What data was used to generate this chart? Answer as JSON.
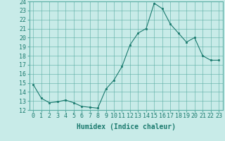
{
  "x": [
    0,
    1,
    2,
    3,
    4,
    5,
    6,
    7,
    8,
    9,
    10,
    11,
    12,
    13,
    14,
    15,
    16,
    17,
    18,
    19,
    20,
    21,
    22,
    23
  ],
  "y": [
    14.8,
    13.3,
    12.8,
    12.9,
    13.1,
    12.8,
    12.4,
    12.3,
    12.2,
    14.3,
    15.3,
    16.8,
    19.2,
    20.5,
    21.0,
    23.8,
    23.2,
    21.5,
    20.5,
    19.5,
    20.0,
    18.0,
    17.5,
    17.5
  ],
  "line_color": "#1a7a6e",
  "marker_color": "#1a7a6e",
  "bg_color": "#c8ebe8",
  "grid_color": "#5aada3",
  "xlabel": "Humidex (Indice chaleur)",
  "xlim": [
    -0.5,
    23.5
  ],
  "ylim": [
    12,
    24
  ],
  "yticks": [
    12,
    13,
    14,
    15,
    16,
    17,
    18,
    19,
    20,
    21,
    22,
    23,
    24
  ],
  "xticks": [
    0,
    1,
    2,
    3,
    4,
    5,
    6,
    7,
    8,
    9,
    10,
    11,
    12,
    13,
    14,
    15,
    16,
    17,
    18,
    19,
    20,
    21,
    22,
    23
  ],
  "font_size": 6,
  "xlabel_fontsize": 7
}
